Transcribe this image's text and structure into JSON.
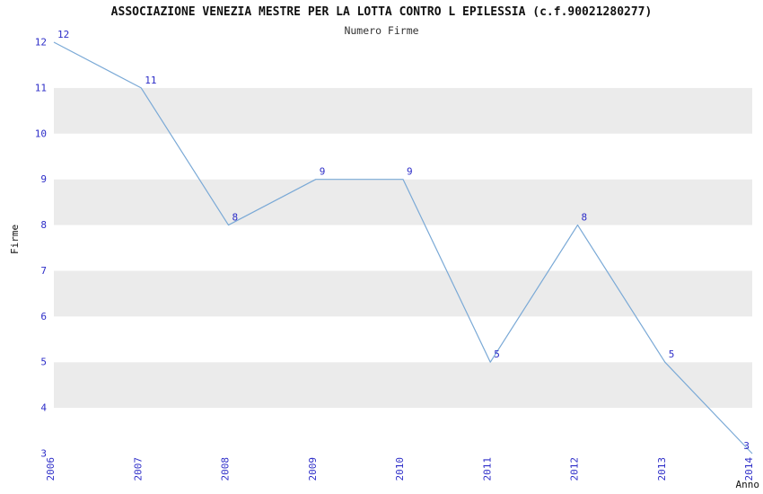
{
  "chart_data": {
    "type": "line",
    "title": "ASSOCIAZIONE VENEZIA MESTRE PER LA LOTTA CONTRO L EPILESSIA (c.f.90021280277)",
    "subtitle": "Numero Firme",
    "xlabel": "Anno",
    "ylabel": "Firme",
    "categories": [
      "2006",
      "2007",
      "2008",
      "2009",
      "2010",
      "2011",
      "2012",
      "2013",
      "2014"
    ],
    "values": [
      12,
      11,
      8,
      9,
      9,
      5,
      8,
      5,
      3
    ],
    "ylim": [
      3,
      12
    ],
    "y_ticks": [
      3,
      4,
      5,
      6,
      7,
      8,
      9,
      10,
      11,
      12
    ],
    "legend": "none",
    "grid": "alternating-bands",
    "colors": {
      "line": "#7aa9d6",
      "tick_label": "#2d2dc8",
      "point_label": "#2d2dc8",
      "band_gray": "#ebebeb",
      "band_white": "#ffffff",
      "title_text": "#111111"
    }
  }
}
